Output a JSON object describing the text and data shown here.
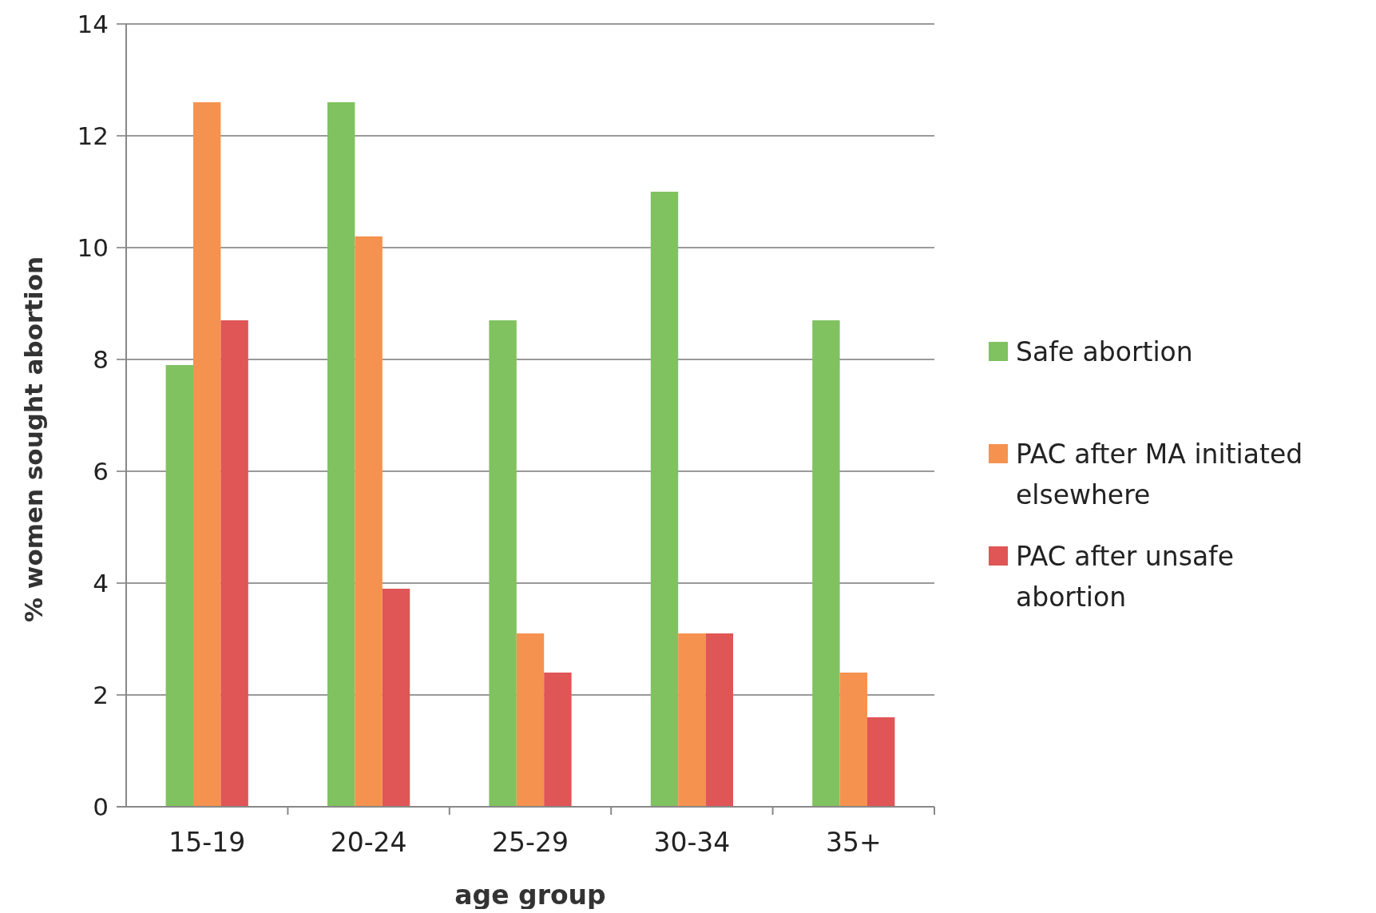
{
  "chart_data": {
    "type": "bar",
    "xlabel": "age group",
    "ylabel": "% women sought abortion",
    "categories": [
      "15-19",
      "20-24",
      "25-29",
      "30-34",
      "35+"
    ],
    "series": [
      {
        "name": "Safe abortion",
        "color": "#80c25f",
        "values": [
          7.9,
          12.6,
          8.7,
          11.0,
          8.7
        ]
      },
      {
        "name": "PAC after MA initiated elsewhere",
        "color": "#f5924f",
        "values": [
          12.6,
          10.2,
          3.1,
          3.1,
          2.4
        ]
      },
      {
        "name": "PAC after unsafe abortion",
        "color": "#e05555",
        "values": [
          8.7,
          3.9,
          2.4,
          3.1,
          1.6
        ]
      }
    ],
    "ylim": [
      0,
      14
    ],
    "yticks": [
      0,
      2,
      4,
      6,
      8,
      10,
      12,
      14
    ],
    "grid": "y",
    "legend": "right"
  }
}
